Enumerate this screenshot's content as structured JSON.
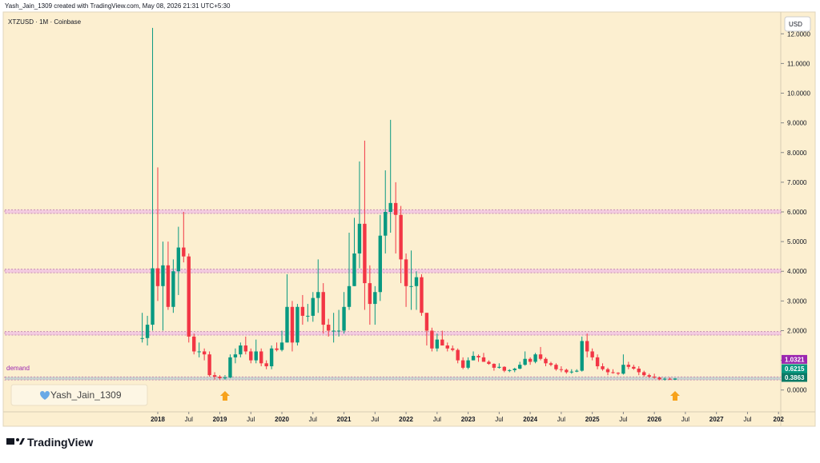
{
  "header": {
    "caption": "Yash_Jain_1309 created with TradingView.com, May 08, 2026 21:31 UTC+5:30"
  },
  "footer": {
    "brand": "TradingView"
  },
  "chart_data": {
    "type": "candlestick",
    "title": "XTZUSD · 1M · Coinbase",
    "currency": "USD",
    "watermark": "Yash_Jain_1309",
    "zone_label": "demand",
    "up_color": "#089981",
    "down_color": "#f23645",
    "x": [
      "2017-10",
      "2017-11",
      "2017-12",
      "2018-01",
      "2018-02",
      "2018-03",
      "2018-04",
      "2018-05",
      "2018-06",
      "2018-07",
      "2018-08",
      "2018-09",
      "2018-10",
      "2018-11",
      "2018-12",
      "2019-01",
      "2019-02",
      "2019-03",
      "2019-04",
      "2019-05",
      "2019-06",
      "2019-07",
      "2019-08",
      "2019-09",
      "2019-10",
      "2019-11",
      "2019-12",
      "2020-01",
      "2020-02",
      "2020-03",
      "2020-04",
      "2020-05",
      "2020-06",
      "2020-07",
      "2020-08",
      "2020-09",
      "2020-10",
      "2020-11",
      "2020-12",
      "2021-01",
      "2021-02",
      "2021-03",
      "2021-04",
      "2021-05",
      "2021-06",
      "2021-07",
      "2021-08",
      "2021-09",
      "2021-10",
      "2021-11",
      "2021-12",
      "2022-01",
      "2022-02",
      "2022-03",
      "2022-04",
      "2022-05",
      "2022-06",
      "2022-07",
      "2022-08",
      "2022-09",
      "2022-10",
      "2022-11",
      "2022-12",
      "2023-01",
      "2023-02",
      "2023-03",
      "2023-04",
      "2023-05",
      "2023-06",
      "2023-07",
      "2023-08",
      "2023-09",
      "2023-10",
      "2023-11",
      "2023-12",
      "2024-01",
      "2024-02",
      "2024-03",
      "2024-04",
      "2024-05",
      "2024-06",
      "2024-07",
      "2024-08",
      "2024-09",
      "2024-10",
      "2024-11",
      "2024-12",
      "2025-01",
      "2025-02",
      "2025-03",
      "2025-04",
      "2025-05",
      "2025-06",
      "2025-07",
      "2025-08",
      "2025-09",
      "2025-10",
      "2025-11",
      "2025-12",
      "2026-01",
      "2026-02",
      "2026-03",
      "2026-04",
      "2026-05"
    ],
    "open": [
      1.75,
      1.75,
      2.2,
      4.1,
      3.5,
      4.2,
      2.8,
      4.0,
      4.8,
      4.5,
      1.8,
      1.3,
      1.3,
      1.2,
      0.5,
      0.45,
      0.4,
      0.42,
      1.1,
      1.2,
      1.5,
      1.3,
      1.0,
      1.3,
      0.9,
      0.8,
      1.4,
      1.35,
      1.6,
      2.8,
      1.6,
      2.8,
      2.5,
      2.5,
      3.1,
      3.3,
      2.2,
      2.0,
      2.0,
      2.0,
      2.8,
      3.5,
      4.6,
      5.6,
      3.6,
      2.9,
      3.3,
      5.2,
      6.0,
      6.3,
      5.9,
      4.4,
      3.5,
      3.5,
      3.8,
      2.6,
      2.0,
      1.4,
      1.7,
      1.5,
      1.4,
      1.35,
      1.0,
      0.75,
      1.0,
      1.15,
      1.1,
      0.95,
      0.88,
      0.75,
      0.78,
      0.65,
      0.67,
      0.72,
      0.85,
      1.05,
      0.95,
      1.2,
      1.05,
      0.9,
      0.85,
      0.7,
      0.68,
      0.6,
      0.62,
      0.65,
      1.65,
      1.3,
      1.1,
      0.8,
      0.7,
      0.6,
      0.58,
      0.55,
      0.85,
      0.78,
      0.72,
      0.6,
      0.5,
      0.45,
      0.42,
      0.36,
      0.38,
      0.35
    ],
    "high": [
      2.6,
      2.5,
      12.2,
      7.5,
      5.0,
      5.0,
      4.4,
      5.5,
      6.0,
      4.6,
      1.9,
      1.6,
      1.4,
      1.3,
      0.6,
      0.5,
      0.5,
      1.2,
      1.4,
      1.6,
      1.8,
      1.4,
      1.7,
      1.4,
      1.0,
      1.5,
      1.6,
      2.0,
      3.9,
      3.0,
      2.9,
      3.2,
      2.9,
      3.3,
      4.4,
      3.6,
      2.4,
      2.6,
      2.7,
      3.3,
      5.3,
      5.8,
      7.7,
      8.4,
      4.2,
      3.5,
      5.9,
      7.4,
      9.1,
      7.0,
      6.2,
      4.6,
      4.7,
      4.0,
      3.9,
      2.6,
      2.1,
      1.9,
      2.0,
      1.6,
      1.5,
      1.4,
      1.1,
      1.1,
      1.3,
      1.2,
      1.25,
      1.0,
      0.9,
      0.9,
      0.8,
      0.7,
      0.75,
      0.95,
      1.3,
      1.1,
      1.25,
      1.45,
      1.1,
      0.95,
      0.9,
      0.8,
      0.72,
      0.7,
      0.7,
      1.8,
      1.9,
      1.4,
      1.2,
      0.9,
      0.75,
      0.7,
      0.6,
      1.2,
      0.95,
      0.85,
      0.8,
      0.65,
      0.55,
      0.55,
      0.45,
      0.42,
      0.42,
      0.4
    ],
    "low": [
      1.6,
      1.5,
      2.0,
      3.0,
      2.0,
      2.7,
      2.6,
      3.2,
      4.3,
      1.6,
      1.2,
      1.1,
      1.0,
      0.45,
      0.35,
      0.35,
      0.35,
      0.4,
      0.9,
      1.1,
      1.2,
      0.9,
      0.9,
      0.8,
      0.7,
      0.7,
      1.3,
      1.3,
      1.6,
      1.3,
      1.5,
      2.2,
      2.3,
      2.3,
      2.6,
      1.9,
      1.8,
      1.6,
      1.8,
      1.9,
      2.7,
      3.5,
      4.1,
      2.7,
      2.2,
      2.2,
      3.0,
      4.6,
      5.3,
      4.6,
      3.6,
      2.8,
      2.7,
      2.7,
      2.5,
      1.5,
      1.3,
      1.3,
      1.5,
      1.3,
      1.3,
      0.9,
      0.7,
      0.7,
      1.0,
      0.95,
      0.95,
      0.85,
      0.65,
      0.72,
      0.6,
      0.6,
      0.6,
      0.7,
      0.82,
      0.85,
      0.9,
      1.0,
      0.8,
      0.8,
      0.65,
      0.6,
      0.55,
      0.55,
      0.6,
      0.62,
      1.1,
      1.0,
      0.7,
      0.65,
      0.5,
      0.55,
      0.5,
      0.52,
      0.7,
      0.68,
      0.5,
      0.45,
      0.4,
      0.38,
      0.33,
      0.32,
      0.34,
      0.34
    ],
    "close": [
      1.75,
      2.2,
      4.1,
      3.5,
      4.2,
      2.8,
      4.0,
      4.8,
      4.5,
      1.8,
      1.3,
      1.3,
      1.2,
      0.5,
      0.45,
      0.4,
      0.42,
      1.1,
      1.2,
      1.5,
      1.3,
      1.0,
      1.3,
      0.9,
      0.8,
      1.4,
      1.35,
      1.6,
      2.8,
      1.6,
      2.8,
      2.5,
      2.5,
      3.1,
      3.3,
      2.2,
      2.0,
      2.0,
      2.0,
      2.8,
      3.5,
      4.6,
      5.6,
      3.6,
      2.9,
      3.3,
      5.2,
      6.0,
      6.3,
      5.9,
      4.4,
      3.5,
      3.5,
      3.8,
      2.6,
      2.0,
      1.4,
      1.7,
      1.5,
      1.4,
      1.35,
      1.0,
      0.75,
      1.0,
      1.15,
      1.1,
      0.95,
      0.88,
      0.75,
      0.78,
      0.65,
      0.67,
      0.72,
      0.85,
      1.05,
      0.95,
      1.2,
      1.05,
      0.9,
      0.85,
      0.7,
      0.68,
      0.6,
      0.62,
      0.65,
      1.65,
      1.3,
      1.1,
      0.8,
      0.7,
      0.6,
      0.58,
      0.55,
      0.85,
      0.78,
      0.72,
      0.6,
      0.5,
      0.45,
      0.42,
      0.36,
      0.38,
      0.35,
      0.3863
    ],
    "zones": [
      {
        "low": 5.95,
        "high": 6.07,
        "color": "#f3cbe0"
      },
      {
        "low": 3.95,
        "high": 4.07,
        "color": "#f3cbe0"
      },
      {
        "low": 1.85,
        "high": 1.97,
        "color": "#f3cbe0"
      },
      {
        "low": 0.34,
        "high": 0.44,
        "color": "#c9d3cf"
      }
    ],
    "price_labels": [
      {
        "value": 1.0321,
        "label": "1.0321",
        "color": "#9c27b0"
      },
      {
        "value": 0.6215,
        "label": "0.6215",
        "color": "#089981"
      },
      {
        "value": 0.3863,
        "label": "0.3863",
        "color": "#0b7a66"
      }
    ],
    "signals": [
      "2019-02",
      "2026-05"
    ],
    "ylim": [
      -0.6,
      12.6
    ],
    "yticks": [
      {
        "value": 0,
        "label": "0.0000"
      },
      {
        "value": 1,
        "label": "1.0000"
      },
      {
        "value": 2,
        "label": "2.0000"
      },
      {
        "value": 3,
        "label": "3.0000"
      },
      {
        "value": 4,
        "label": "4.0000"
      },
      {
        "value": 5,
        "label": "5.0000"
      },
      {
        "value": 6,
        "label": "6.0000"
      },
      {
        "value": 7,
        "label": "7.0000"
      },
      {
        "value": 8,
        "label": "8.0000"
      },
      {
        "value": 9,
        "label": "9.0000"
      },
      {
        "value": 10,
        "label": "10.0000"
      },
      {
        "value": 11,
        "label": "11.0000"
      },
      {
        "value": 12,
        "label": "12.0000"
      }
    ],
    "xticks": [
      {
        "value": "2018-01",
        "label": "2018"
      },
      {
        "value": "2018-07",
        "label": "Jul"
      },
      {
        "value": "2019-01",
        "label": "2019"
      },
      {
        "value": "2019-07",
        "label": "Jul"
      },
      {
        "value": "2020-01",
        "label": "2020"
      },
      {
        "value": "2020-07",
        "label": "Jul"
      },
      {
        "value": "2021-01",
        "label": "2021"
      },
      {
        "value": "2021-07",
        "label": "Jul"
      },
      {
        "value": "2022-01",
        "label": "2022"
      },
      {
        "value": "2022-07",
        "label": "Jul"
      },
      {
        "value": "2023-01",
        "label": "2023"
      },
      {
        "value": "2023-07",
        "label": "Jul"
      },
      {
        "value": "2024-01",
        "label": "2024"
      },
      {
        "value": "2024-07",
        "label": "Jul"
      },
      {
        "value": "2025-01",
        "label": "2025"
      },
      {
        "value": "2025-07",
        "label": "Jul"
      },
      {
        "value": "2026-01",
        "label": "2026"
      },
      {
        "value": "2026-07",
        "label": "Jul"
      },
      {
        "value": "2027-01",
        "label": "2027"
      },
      {
        "value": "2027-07",
        "label": "Jul"
      },
      {
        "value": "2028-01",
        "label": "202"
      }
    ]
  }
}
